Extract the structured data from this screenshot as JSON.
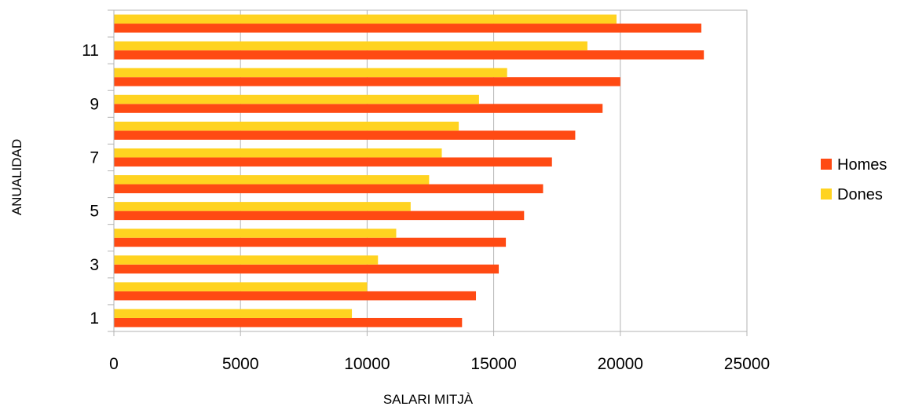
{
  "chart_data": {
    "type": "bar",
    "orientation": "horizontal",
    "categories": [
      "1",
      "2",
      "3",
      "4",
      "5",
      "6",
      "7",
      "8",
      "9",
      "10",
      "11",
      "12"
    ],
    "category_tick_labels": [
      "1",
      "3",
      "5",
      "7",
      "9",
      "11"
    ],
    "series": [
      {
        "name": "Homes",
        "color": "#ff4a13",
        "values": [
          13750,
          14300,
          15200,
          15480,
          16200,
          16950,
          17300,
          18220,
          19300,
          20000,
          23300,
          23200
        ]
      },
      {
        "name": "Dones",
        "color": "#ffd320",
        "values": [
          9400,
          10000,
          10430,
          11150,
          11720,
          12450,
          12950,
          13620,
          14420,
          15530,
          18700,
          19850
        ]
      }
    ],
    "xlabel": "SALARI MITJÀ",
    "ylabel": "ANUALIDAD",
    "xlim": [
      0,
      25000
    ],
    "xticks": [
      0,
      5000,
      10000,
      15000,
      20000,
      25000
    ],
    "grid": "vertical",
    "legend_position": "right"
  }
}
